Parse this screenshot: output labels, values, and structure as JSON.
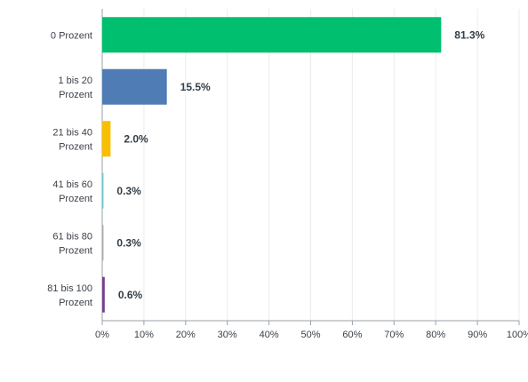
{
  "chart_data": {
    "type": "bar",
    "orientation": "horizontal",
    "title": "",
    "xlabel": "",
    "ylabel": "",
    "xlim": [
      0,
      100
    ],
    "grid": true,
    "legend": "none",
    "categories": [
      "0 Prozent",
      "1 bis 20 Prozent",
      "21 bis 40 Prozent",
      "41 bis 60 Prozent",
      "61 bis 80 Prozent",
      "81 bis 100 Prozent"
    ],
    "category_lines": [
      [
        "0 Prozent"
      ],
      [
        "1 bis 20",
        "Prozent"
      ],
      [
        "21 bis 40",
        "Prozent"
      ],
      [
        "41 bis 60",
        "Prozent"
      ],
      [
        "61 bis 80",
        "Prozent"
      ],
      [
        "81 bis 100",
        "Prozent"
      ]
    ],
    "values": [
      81.3,
      15.5,
      2.0,
      0.3,
      0.3,
      0.6
    ],
    "value_labels": [
      "81.3%",
      "15.5%",
      "2.0%",
      "0.3%",
      "0.3%",
      "0.6%"
    ],
    "colors": [
      "#00bf6f",
      "#507cb6",
      "#f9be00",
      "#6bc8cd",
      "#a7a9ac",
      "#763f8c"
    ],
    "ticks": [
      "0%",
      "10%",
      "20%",
      "30%",
      "40%",
      "50%",
      "60%",
      "70%",
      "80%",
      "90%",
      "100%"
    ],
    "grid_color": "#eaecee",
    "axis_color": "#9aa0a6"
  }
}
